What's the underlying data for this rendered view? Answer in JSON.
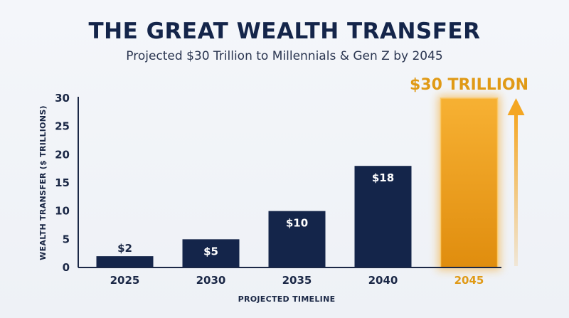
{
  "header": {
    "title": "THE GREAT WEALTH TRANSFER",
    "subtitle": "Projected $30 Trillion to Millennials & Gen Z by 2045"
  },
  "colors": {
    "bar": "#14254a",
    "highlight": "#f4a623",
    "highlight_text": "#e09a16",
    "text": "#1b2846",
    "axis": "#1b2846"
  },
  "chart_data": {
    "type": "bar",
    "title": "THE GREAT WEALTH TRANSFER",
    "subtitle": "Projected $30 Trillion to Millennials & Gen Z by 2045",
    "xlabel": "PROJECTED TIMELINE",
    "ylabel": "WEALTH TRANSFER ($ TRILLIONS)",
    "categories": [
      "2025",
      "2030",
      "2035",
      "2040",
      "2045"
    ],
    "values": [
      2,
      5,
      10,
      18,
      30
    ],
    "value_labels": [
      "$2",
      "$5",
      "$10",
      "$18",
      ""
    ],
    "ylim": [
      0,
      30
    ],
    "yticks": [
      0,
      5,
      10,
      15,
      20,
      25,
      30
    ],
    "grid": false,
    "highlight_index": 4,
    "annotation": "$30 TRILLION",
    "annotation_arrow": "up"
  }
}
